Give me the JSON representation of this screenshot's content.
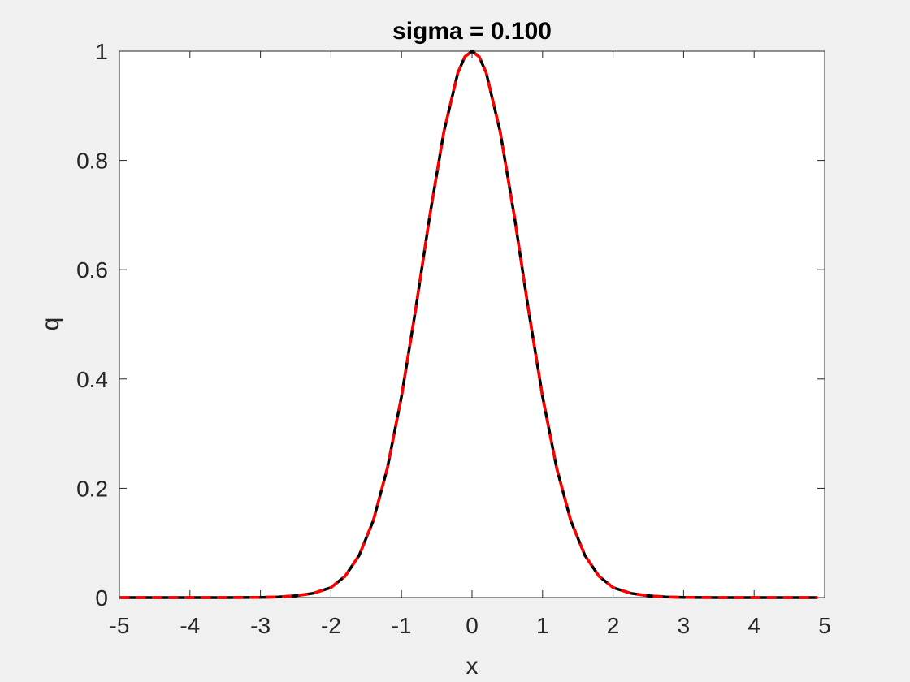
{
  "chart_data": {
    "type": "line",
    "title": "sigma = 0.100",
    "xlabel": "x",
    "ylabel": "q",
    "xlim": [
      -5,
      5
    ],
    "ylim": [
      0,
      1
    ],
    "xticks": [
      -5,
      -4,
      -3,
      -2,
      -1,
      0,
      1,
      2,
      3,
      4,
      5
    ],
    "yticks": [
      0,
      0.2,
      0.4,
      0.6,
      0.8,
      1
    ],
    "xtick_labels": [
      "-5",
      "-4",
      "-3",
      "-2",
      "-1",
      "0",
      "1",
      "2",
      "3",
      "4",
      "5"
    ],
    "ytick_labels": [
      "0",
      "0.2",
      "0.4",
      "0.6",
      "0.8",
      "1"
    ],
    "grid": false,
    "series": [
      {
        "style": "solid",
        "color": "#000000",
        "x": [
          -5,
          -4.5,
          -4,
          -3.5,
          -3,
          -2.75,
          -2.5,
          -2.25,
          -2,
          -1.8,
          -1.6,
          -1.4,
          -1.2,
          -1,
          -0.8,
          -0.6,
          -0.4,
          -0.2,
          -0.1,
          0,
          0.1,
          0.2,
          0.4,
          0.6,
          0.8,
          1,
          1.2,
          1.4,
          1.6,
          1.8,
          2,
          2.25,
          2.5,
          2.75,
          3,
          3.5,
          4,
          4.5,
          4.9
        ],
        "y": [
          0,
          0,
          0,
          0,
          0.0004,
          0.0012,
          0.0032,
          0.0079,
          0.0183,
          0.0392,
          0.0773,
          0.1409,
          0.2369,
          0.3679,
          0.5273,
          0.6977,
          0.8521,
          0.9608,
          0.99,
          1,
          0.99,
          0.9608,
          0.8521,
          0.6977,
          0.5273,
          0.3679,
          0.2369,
          0.1409,
          0.0773,
          0.0392,
          0.0183,
          0.0079,
          0.0032,
          0.0012,
          0.0004,
          0,
          0,
          0,
          0
        ]
      },
      {
        "style": "dashed",
        "color": "#ff0000",
        "x": [
          -5,
          -4.5,
          -4,
          -3.5,
          -3,
          -2.75,
          -2.5,
          -2.25,
          -2,
          -1.8,
          -1.6,
          -1.4,
          -1.2,
          -1,
          -0.8,
          -0.6,
          -0.4,
          -0.2,
          -0.1,
          0,
          0.1,
          0.2,
          0.4,
          0.6,
          0.8,
          1,
          1.2,
          1.4,
          1.6,
          1.8,
          2,
          2.25,
          2.5,
          2.75,
          3,
          3.5,
          4,
          4.5,
          4.9
        ],
        "y": [
          0,
          0,
          0,
          0,
          0.0004,
          0.0012,
          0.0032,
          0.0079,
          0.0183,
          0.0392,
          0.0773,
          0.1409,
          0.2369,
          0.3679,
          0.5273,
          0.6977,
          0.8521,
          0.9608,
          0.99,
          1,
          0.99,
          0.9608,
          0.8521,
          0.6977,
          0.5273,
          0.3679,
          0.2369,
          0.1409,
          0.0773,
          0.0392,
          0.0183,
          0.0079,
          0.0032,
          0.0012,
          0.0004,
          0,
          0,
          0,
          0
        ]
      }
    ]
  }
}
